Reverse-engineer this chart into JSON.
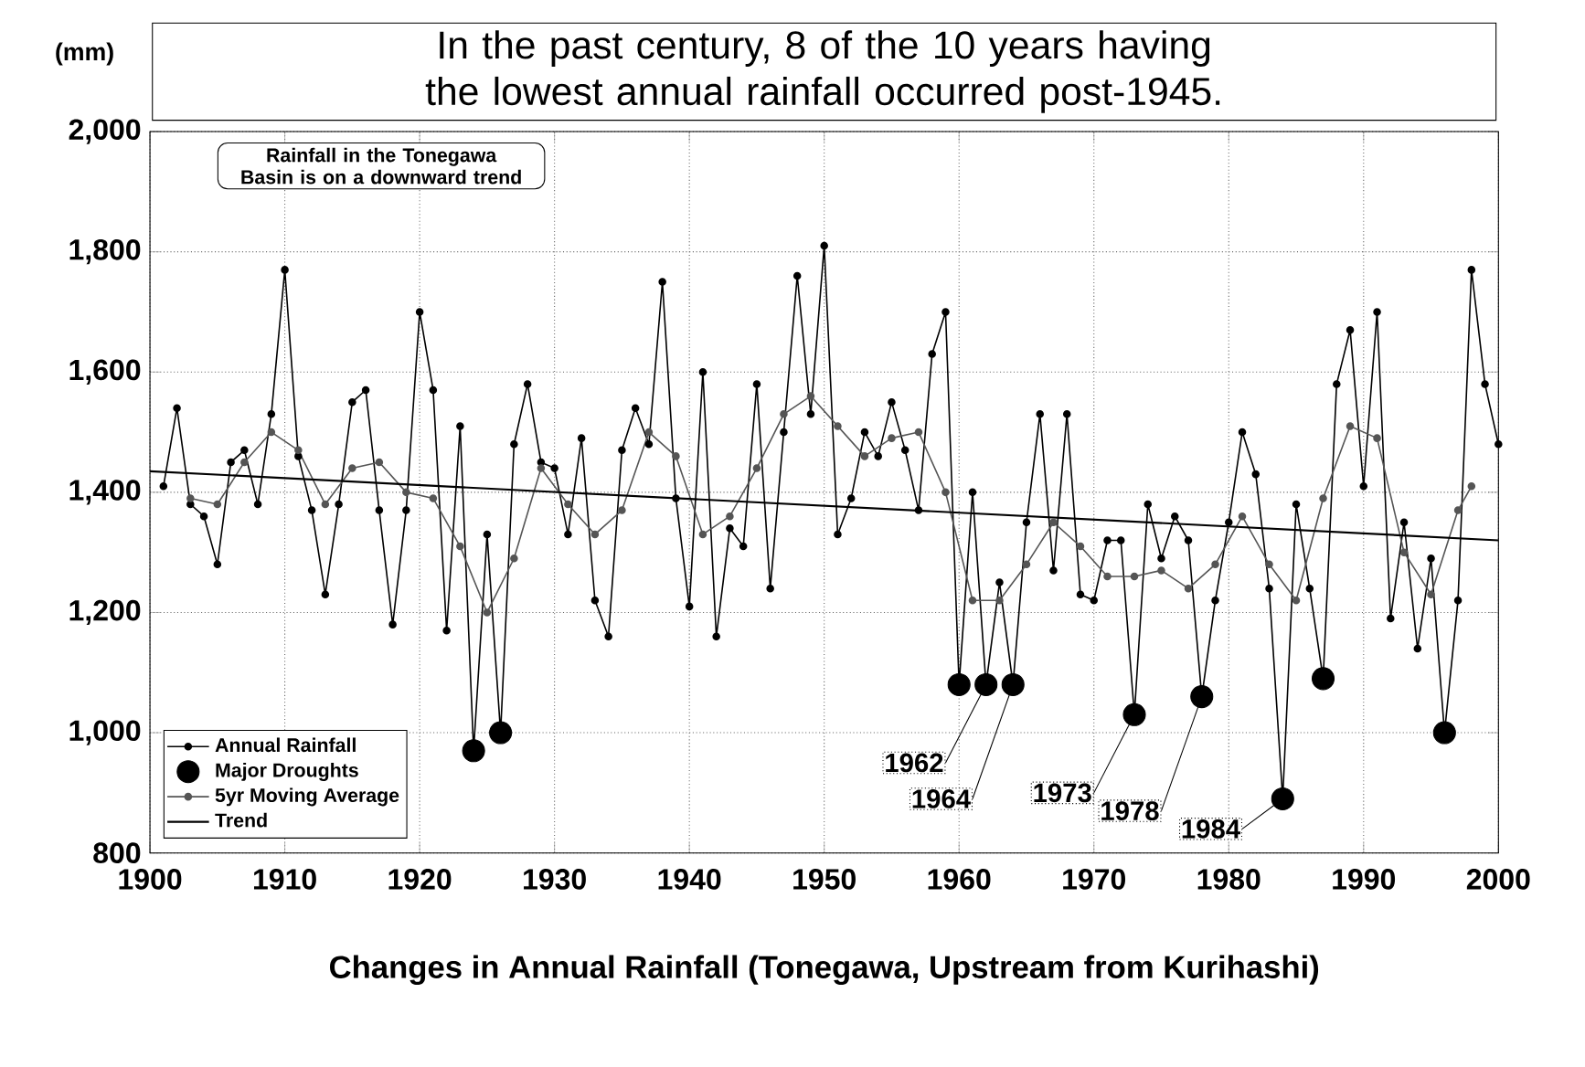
{
  "chart_data": {
    "type": "line",
    "title": "In the past century, 8 of the 10 years having the lowest annual rainfall occurred post-1945.",
    "xlabel": "Changes in Annual Rainfall (Tonegawa, Upstream from Kurihashi)",
    "ylabel": "(mm)",
    "xlim": [
      1900,
      2000
    ],
    "ylim": [
      800,
      2000
    ],
    "xticks": [
      1900,
      1910,
      1920,
      1930,
      1940,
      1950,
      1960,
      1970,
      1980,
      1990,
      2000
    ],
    "yticks": [
      800,
      {
        "value": 1000,
        "label": "1,000"
      },
      {
        "value": 1200,
        "label": "1,200"
      },
      {
        "value": 1400,
        "label": "1,400"
      },
      {
        "value": 1600,
        "label": "1,600"
      },
      {
        "value": 1800,
        "label": "1,800"
      },
      {
        "value": 2000,
        "label": "2,000"
      }
    ],
    "grid": true,
    "legend": "bottom left",
    "series": [
      {
        "name": "Annual Rainfall",
        "color": "#000000",
        "marker": "circle",
        "x": [
          1901,
          1902,
          1903,
          1904,
          1905,
          1906,
          1907,
          1908,
          1909,
          1910,
          1911,
          1912,
          1913,
          1914,
          1915,
          1916,
          1917,
          1918,
          1919,
          1920,
          1921,
          1922,
          1923,
          1924,
          1925,
          1926,
          1927,
          1928,
          1929,
          1930,
          1931,
          1932,
          1933,
          1934,
          1935,
          1936,
          1937,
          1938,
          1939,
          1940,
          1941,
          1942,
          1943,
          1944,
          1945,
          1946,
          1947,
          1948,
          1949,
          1950,
          1951,
          1952,
          1953,
          1954,
          1955,
          1956,
          1957,
          1958,
          1959,
          1960,
          1961,
          1962,
          1963,
          1964,
          1965,
          1966,
          1967,
          1968,
          1969,
          1970,
          1971,
          1972,
          1973,
          1974,
          1975,
          1976,
          1977,
          1978,
          1979,
          1980,
          1981,
          1982,
          1983,
          1984,
          1985,
          1986,
          1987,
          1988,
          1989,
          1990,
          1991,
          1992,
          1993,
          1994,
          1995,
          1996,
          1997,
          1998,
          1999,
          2000
        ],
        "values": [
          1410,
          1540,
          1380,
          1360,
          1280,
          1450,
          1470,
          1380,
          1530,
          1770,
          1460,
          1370,
          1230,
          1380,
          1550,
          1570,
          1370,
          1180,
          1370,
          1700,
          1570,
          1170,
          1510,
          970,
          1330,
          1000,
          1480,
          1580,
          1450,
          1440,
          1330,
          1490,
          1220,
          1160,
          1470,
          1540,
          1480,
          1750,
          1390,
          1210,
          1600,
          1160,
          1340,
          1310,
          1580,
          1240,
          1500,
          1760,
          1530,
          1810,
          1330,
          1390,
          1500,
          1460,
          1550,
          1470,
          1370,
          1630,
          1700,
          1080,
          1400,
          1080,
          1250,
          1080,
          1350,
          1530,
          1270,
          1530,
          1230,
          1220,
          1320,
          1320,
          1030,
          1380,
          1290,
          1360,
          1320,
          1060,
          1220,
          1350,
          1500,
          1430,
          1240,
          890,
          1380,
          1240,
          1090,
          1580,
          1670,
          1410,
          1700,
          1190,
          1350,
          1140,
          1290,
          1000,
          1220,
          1770,
          1580,
          1480
        ]
      },
      {
        "name": "Major Droughts",
        "type": "scatter",
        "color": "#000000",
        "marker": "circle",
        "x": [
          1924,
          1926,
          1960,
          1962,
          1964,
          1973,
          1978,
          1984,
          1987,
          1996
        ],
        "values": [
          970,
          1000,
          1080,
          1080,
          1080,
          1030,
          1060,
          890,
          1090,
          1000
        ]
      },
      {
        "name": "5yr Moving Average",
        "color": "#555555",
        "marker": "circle",
        "x": [
          1903,
          1905,
          1907,
          1909,
          1911,
          1913,
          1915,
          1917,
          1919,
          1921,
          1923,
          1925,
          1927,
          1929,
          1931,
          1933,
          1935,
          1937,
          1939,
          1941,
          1943,
          1945,
          1947,
          1949,
          1951,
          1953,
          1955,
          1957,
          1959,
          1961,
          1963,
          1965,
          1967,
          1969,
          1971,
          1973,
          1975,
          1977,
          1979,
          1981,
          1983,
          1985,
          1987,
          1989,
          1991,
          1993,
          1995,
          1997,
          1998
        ],
        "values": [
          1390,
          1380,
          1450,
          1500,
          1470,
          1380,
          1440,
          1450,
          1400,
          1390,
          1310,
          1200,
          1290,
          1440,
          1380,
          1330,
          1370,
          1500,
          1460,
          1330,
          1360,
          1440,
          1530,
          1560,
          1510,
          1460,
          1490,
          1500,
          1400,
          1220,
          1220,
          1280,
          1350,
          1310,
          1260,
          1260,
          1270,
          1240,
          1280,
          1360,
          1280,
          1220,
          1390,
          1510,
          1490,
          1300,
          1230,
          1370,
          1410
        ]
      },
      {
        "name": "Trend",
        "color": "#000000",
        "marker": "none",
        "x": [
          1900,
          2000
        ],
        "values": [
          1435,
          1320
        ]
      }
    ],
    "annotations": [
      {
        "text": "Rainfall in the Tonegawa Basin is on a downward trend"
      },
      {
        "text": "1962",
        "x": 1962,
        "y": 1080
      },
      {
        "text": "1964",
        "x": 1964,
        "y": 1080
      },
      {
        "text": "1973",
        "x": 1973,
        "y": 1030
      },
      {
        "text": "1978",
        "x": 1978,
        "y": 1060
      },
      {
        "text": "1984",
        "x": 1984,
        "y": 890
      }
    ]
  }
}
